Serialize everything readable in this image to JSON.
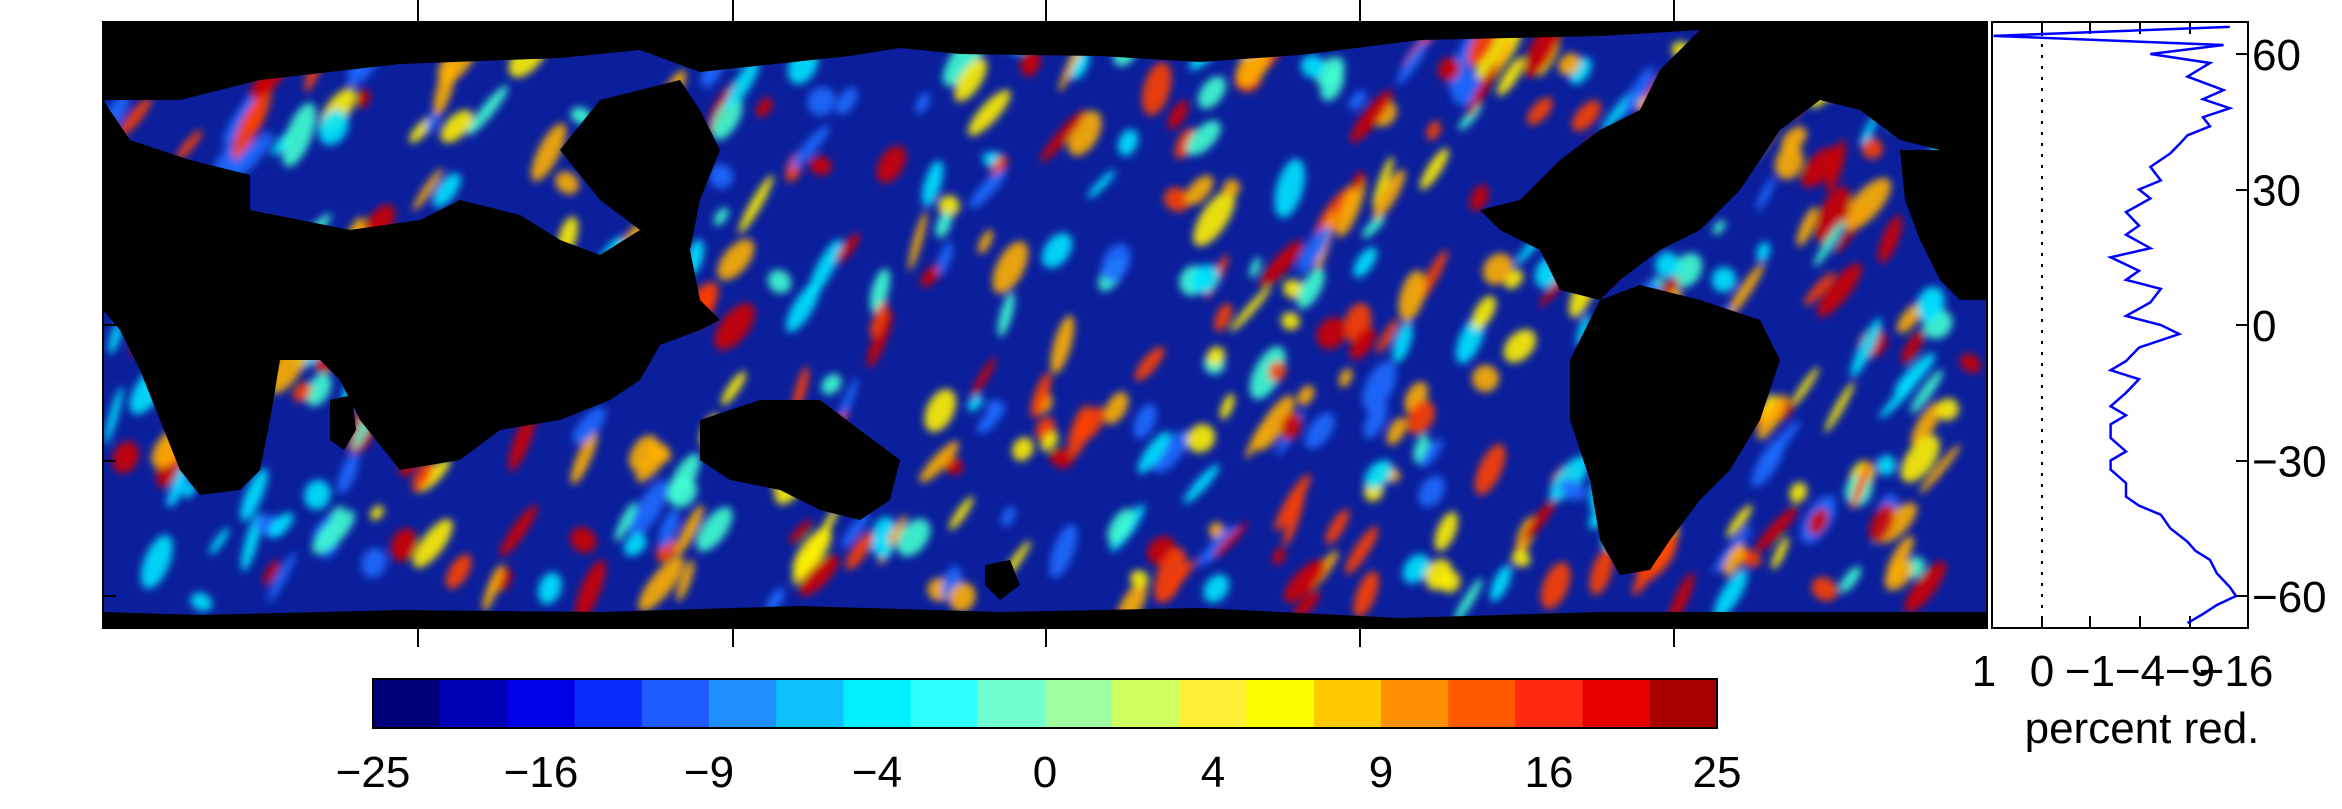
{
  "chart_data": [
    {
      "type": "heatmap",
      "title": "",
      "xlabel": "",
      "ylabel": "",
      "yticks": [
        60,
        30,
        0,
        -30,
        -60
      ],
      "yticklabels": [
        "60",
        "30",
        "0",
        "−30",
        "−60"
      ],
      "ylim": [
        -67,
        67
      ],
      "colormap": "jet",
      "colors": {
        "ocean_base": "#0b1f9c",
        "land": "#000000"
      }
    },
    {
      "type": "line",
      "xlabel": "percent red.",
      "xticklabels": [
        "1",
        "0",
        "−1",
        "−4",
        "−9",
        "−16"
      ],
      "ylim": [
        -67,
        67
      ],
      "series": [
        {
          "color": "#0000ff",
          "y": [
            66,
            64,
            62,
            60,
            58,
            55,
            52,
            50,
            48,
            46,
            44,
            42,
            40,
            38,
            35,
            32,
            30,
            28,
            25,
            22,
            20,
            17,
            15,
            12,
            10,
            8,
            5,
            2,
            0,
            -2,
            -5,
            -8,
            -10,
            -12,
            -15,
            -18,
            -20,
            -22,
            -25,
            -28,
            -30,
            -32,
            -35,
            -38,
            -40,
            -42,
            -45,
            -48,
            -50,
            -52,
            -55,
            -58,
            -60,
            -62,
            -64,
            -66
          ],
          "x": [
            -15,
            1,
            -14,
            -5,
            -12,
            -9,
            -14,
            -11,
            -15,
            -11,
            -12,
            -9,
            -8,
            -7,
            -5,
            -6,
            -4,
            -5,
            -3,
            -4,
            -3,
            -5,
            -2,
            -4,
            -3,
            -6,
            -5,
            -3,
            -6,
            -8,
            -4,
            -3,
            -2,
            -4,
            -3,
            -2,
            -3,
            -2,
            -2,
            -3,
            -2,
            -2,
            -3,
            -3,
            -4,
            -6,
            -7,
            -9,
            -10,
            -12,
            -13,
            -15,
            -16,
            -13,
            -11,
            -9
          ]
        }
      ],
      "zero_line": 0
    },
    {
      "type": "colorbar",
      "ticklabels": [
        "−25",
        "−16",
        "−9",
        "−4",
        "0",
        "4",
        "9",
        "16",
        "25"
      ],
      "colors": [
        "#00007a",
        "#0000b4",
        "#0000e6",
        "#0a2cff",
        "#1f5cff",
        "#1f90ff",
        "#0fc0ff",
        "#00f0ff",
        "#2fffff",
        "#6fffd0",
        "#9fff9f",
        "#d0ff60",
        "#fff035",
        "#ffff00",
        "#ffc800",
        "#ff9000",
        "#ff5a00",
        "#ff2a10",
        "#e60000",
        "#a80000"
      ]
    }
  ]
}
